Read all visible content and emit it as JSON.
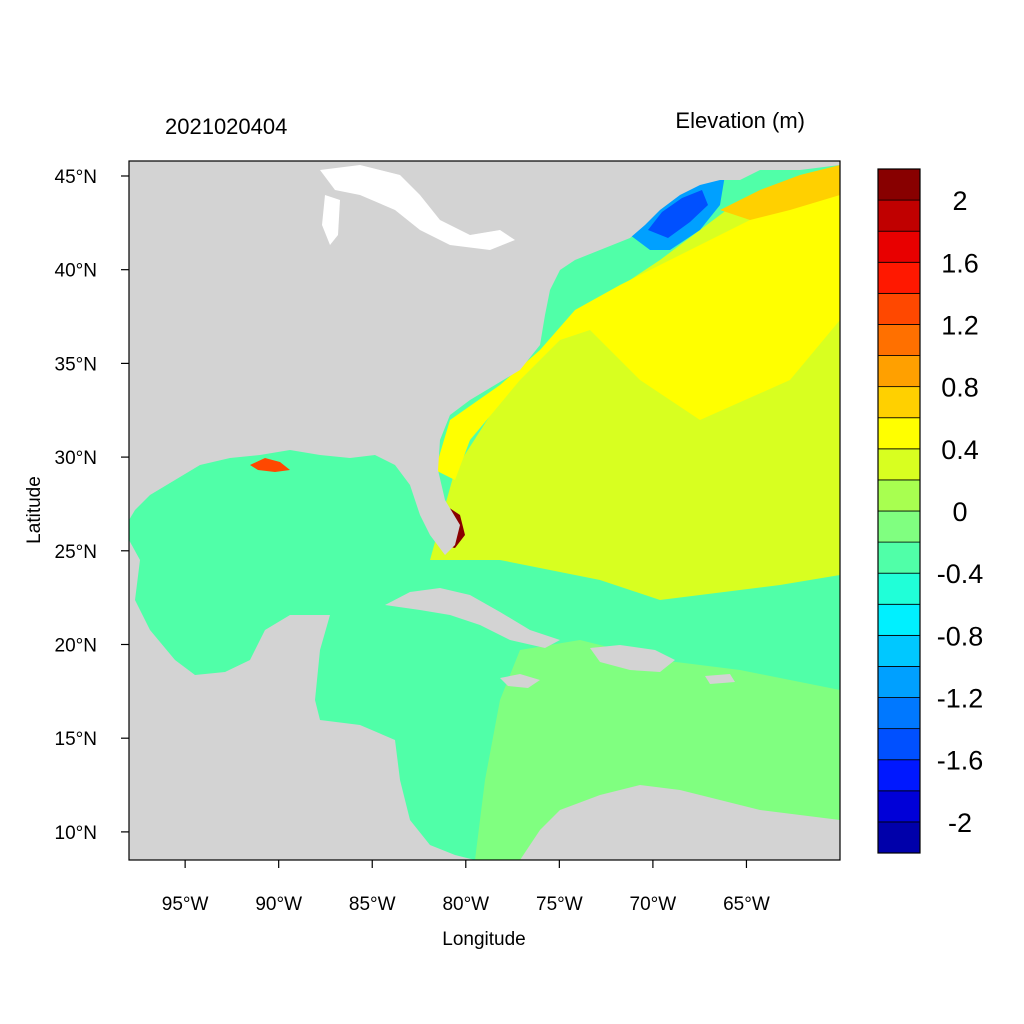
{
  "header": {
    "left_title": "2021020404",
    "right_title": "Elevation (m)"
  },
  "axes": {
    "xlabel": "Longitude",
    "ylabel": "Latitude",
    "x_ticks": [
      {
        "value": -95,
        "label": "95°W"
      },
      {
        "value": -90,
        "label": "90°W"
      },
      {
        "value": -85,
        "label": "85°W"
      },
      {
        "value": -80,
        "label": "80°W"
      },
      {
        "value": -75,
        "label": "75°W"
      },
      {
        "value": -70,
        "label": "70°W"
      },
      {
        "value": -65,
        "label": "65°W"
      }
    ],
    "y_ticks": [
      {
        "value": 45,
        "label": "45°N"
      },
      {
        "value": 40,
        "label": "40°N"
      },
      {
        "value": 35,
        "label": "35°N"
      },
      {
        "value": 30,
        "label": "30°N"
      },
      {
        "value": 25,
        "label": "25°N"
      },
      {
        "value": 20,
        "label": "20°N"
      },
      {
        "value": 15,
        "label": "15°N"
      },
      {
        "value": 10,
        "label": "10°N"
      }
    ],
    "xlim": [
      -98,
      -60
    ],
    "ylim": [
      8.5,
      45.8
    ]
  },
  "colorbar": {
    "levels": [
      -2.2,
      -2,
      -1.8,
      -1.6,
      -1.4,
      -1.2,
      -1,
      -0.8,
      -0.6,
      -0.4,
      -0.2,
      0,
      0.2,
      0.4,
      0.6,
      0.8,
      1,
      1.2,
      1.4,
      1.6,
      1.8,
      2,
      2.2
    ],
    "colors": [
      "#0000aa",
      "#0000d8",
      "#0018ff",
      "#0050ff",
      "#0078ff",
      "#00a0ff",
      "#00c8ff",
      "#00f0ff",
      "#20ffd8",
      "#50ffa8",
      "#80ff80",
      "#a8ff50",
      "#d8ff20",
      "#ffff00",
      "#ffd000",
      "#ffa000",
      "#ff7000",
      "#ff4800",
      "#ff1800",
      "#e80000",
      "#c00000",
      "#880000"
    ],
    "tick_labels": [
      {
        "value": 2,
        "label": "2"
      },
      {
        "value": 1.6,
        "label": "1.6"
      },
      {
        "value": 1.2,
        "label": "1.2"
      },
      {
        "value": 0.8,
        "label": "0.8"
      },
      {
        "value": 0.4,
        "label": "0.4"
      },
      {
        "value": 0,
        "label": "0"
      },
      {
        "value": -0.4,
        "label": "-0.4"
      },
      {
        "value": -0.8,
        "label": "-0.8"
      },
      {
        "value": -1.2,
        "label": "-1.2"
      },
      {
        "value": -1.6,
        "label": "-1.6"
      },
      {
        "value": -2,
        "label": "-2"
      }
    ]
  },
  "map": {
    "land_color": "#d3d3d3",
    "lake_color": "#ffffff"
  }
}
